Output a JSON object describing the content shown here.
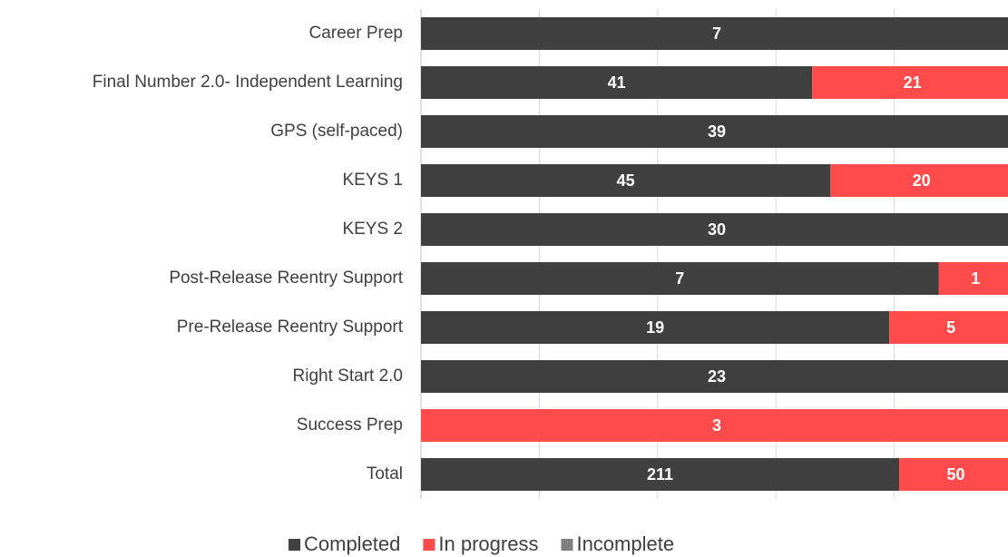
{
  "chart_data": {
    "type": "bar100h",
    "categories": [
      "Career Prep",
      "Final Number 2.0- Independent Learning",
      "GPS (self-paced)",
      "KEYS 1",
      "KEYS 2",
      "Post-Release Reentry Support",
      "Pre-Release Reentry Support",
      "Right Start 2.0",
      "Success Prep",
      "Total"
    ],
    "series": [
      {
        "name": "Completed",
        "color": "#404040",
        "values": [
          7,
          41,
          39,
          45,
          30,
          7,
          19,
          23,
          0,
          211
        ]
      },
      {
        "name": "In progress",
        "color": "#ff4b4b",
        "values": [
          0,
          21,
          0,
          20,
          0,
          1,
          5,
          0,
          3,
          50
        ]
      },
      {
        "name": "Incomplete",
        "color": "#7f7f7f",
        "values": [
          0,
          0,
          0,
          0,
          0,
          0,
          0,
          0,
          0,
          0
        ]
      }
    ],
    "xlim": [
      0,
      100
    ],
    "xticks": [
      0,
      20,
      40,
      60,
      80
    ],
    "grid": true,
    "legend": "bottom"
  }
}
